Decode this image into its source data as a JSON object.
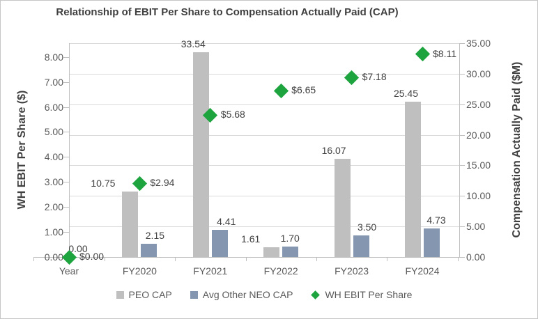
{
  "chart_data": {
    "type": "combo",
    "title": "Relationship of EBIT Per Share to Compensation Actually Paid (CAP)",
    "categories": [
      "Year",
      "FY2020",
      "FY2021",
      "FY2022",
      "FY2023",
      "FY2024"
    ],
    "series": [
      {
        "name": "PEO CAP",
        "type": "bar",
        "axis": "right",
        "color": "#BFBFBF",
        "values": [
          0.0,
          10.75,
          33.54,
          1.61,
          16.07,
          25.45
        ],
        "labels": [
          "",
          "10.75",
          "33.54",
          "1.61",
          "16.07",
          "25.45"
        ]
      },
      {
        "name": "Avg Other NEO CAP",
        "type": "bar",
        "axis": "right",
        "color": "#8496B0",
        "values": [
          0.0,
          2.15,
          4.41,
          1.7,
          3.5,
          4.73
        ],
        "labels": [
          "0.00",
          "2.15",
          "4.41",
          "1.70",
          "3.50",
          "4.73"
        ]
      },
      {
        "name": "WH EBIT Per Share",
        "type": "scatter-diamond",
        "axis": "left",
        "color": "#1EA43F",
        "values": [
          0.0,
          2.94,
          5.68,
          6.65,
          7.18,
          8.11
        ],
        "labels": [
          "$0.00",
          "$2.94",
          "$5.68",
          "$6.65",
          "$7.18",
          "$8.11"
        ]
      }
    ],
    "left_axis": {
      "title": "WH EBIT Per Share ($)",
      "min": 0,
      "max": 8.55,
      "ticks": [
        "0.00",
        "1.00",
        "2.00",
        "3.00",
        "4.00",
        "5.00",
        "6.00",
        "7.00",
        "8.00"
      ]
    },
    "right_axis": {
      "title": "Compensation Actually Paid ($M)",
      "min": 0,
      "max": 35,
      "ticks": [
        "0.00",
        "5.00",
        "10.00",
        "15.00",
        "20.00",
        "25.00",
        "30.00",
        "35.00"
      ]
    },
    "legend_position": "bottom",
    "grid": true,
    "colors": {
      "grid": "#D9D9D9",
      "axis": "#BFBFBF",
      "tick_text": "#595959",
      "title_text": "#404040",
      "label_text": "#404040"
    }
  }
}
